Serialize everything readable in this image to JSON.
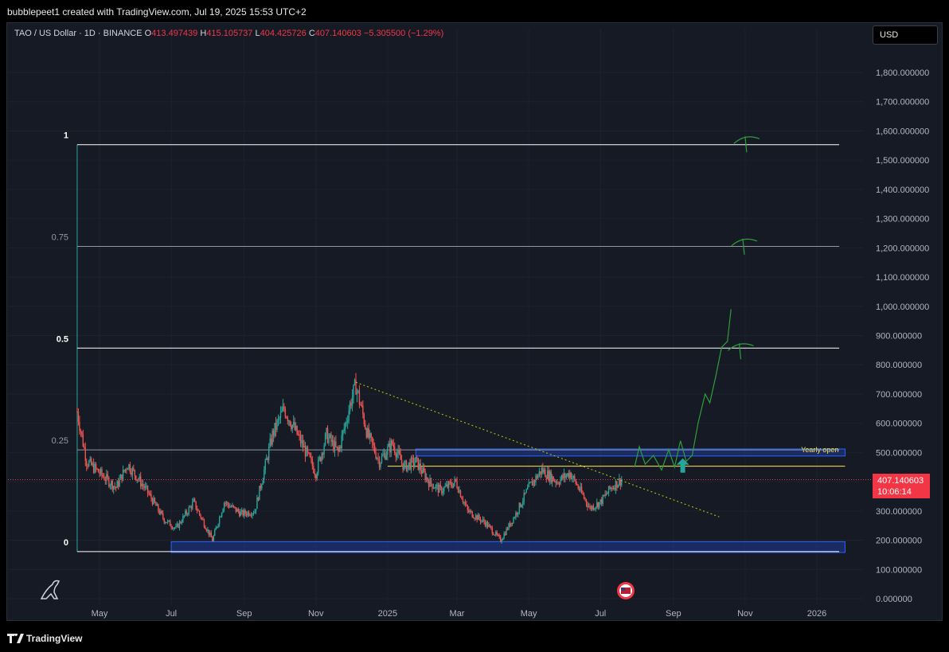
{
  "header": {
    "attribution": "bubblepeet1 created with TradingView.com, Jul 19, 2025 15:53 UTC+2"
  },
  "legend": {
    "symbol": "TAO / US Dollar · 1D · BINANCE",
    "o_key": "O",
    "o_val": "413.497439",
    "h_key": "H",
    "h_val": "415.105737",
    "l_key": "L",
    "l_val": "404.425726",
    "c_key": "C",
    "c_val": "407.140603",
    "change": "−5.305500 (−1.29%)"
  },
  "currency_button": "USD",
  "price_badge": {
    "price": "407.140603",
    "countdown": "10:06:14"
  },
  "footer": {
    "brand": "TradingView"
  },
  "colors": {
    "background": "#161a25",
    "up": "#26a69a",
    "down": "#ef5350",
    "fib_line": "#ffffff",
    "zone_fill": "#1f3a93",
    "zone_border": "#2962ff",
    "yearly_open": "#ffeb3b",
    "projection": "#2e9e3a",
    "price_badge": "#f23645"
  },
  "chart_data": {
    "type": "candlestick",
    "symbol": "TAO / US Dollar",
    "interval": "1D",
    "exchange": "BINANCE",
    "ylim": [
      0,
      1900
    ],
    "y_ticks": [
      0,
      100,
      200,
      300,
      400,
      500,
      600,
      700,
      800,
      900,
      1000,
      1100,
      1200,
      1300,
      1400,
      1500,
      1600,
      1700,
      1800
    ],
    "y_tick_labels": [
      "0.000000",
      "100.000000",
      "200.000000",
      "300.000000",
      "400.000000",
      "500.000000",
      "600.000000",
      "700.000000",
      "800.000000",
      "900.000000",
      "1,000.000000",
      "1,100.000000",
      "1,200.000000",
      "1,300.000000",
      "1,400.000000",
      "1,500.000000",
      "1,600.000000",
      "1,700.000000",
      "1,800.000000"
    ],
    "x_ticks": [
      {
        "label": "May",
        "date": "2024-05-01"
      },
      {
        "label": "Jul",
        "date": "2024-07-01"
      },
      {
        "label": "Sep",
        "date": "2024-09-01"
      },
      {
        "label": "Nov",
        "date": "2024-11-01"
      },
      {
        "label": "2025",
        "date": "2025-01-01"
      },
      {
        "label": "Mar",
        "date": "2025-03-01"
      },
      {
        "label": "May",
        "date": "2025-05-01"
      },
      {
        "label": "Jul",
        "date": "2025-07-01"
      },
      {
        "label": "Sep",
        "date": "2025-09-01"
      },
      {
        "label": "Nov",
        "date": "2025-11-01"
      },
      {
        "label": "2026",
        "date": "2026-01-01"
      }
    ],
    "price_path": [
      [
        "2024-04-12",
        640
      ],
      [
        "2024-04-20",
        470
      ],
      [
        "2024-05-01",
        430
      ],
      [
        "2024-05-15",
        380
      ],
      [
        "2024-05-25",
        460
      ],
      [
        "2024-06-10",
        370
      ],
      [
        "2024-06-25",
        270
      ],
      [
        "2024-07-05",
        240
      ],
      [
        "2024-07-20",
        330
      ],
      [
        "2024-08-05",
        200
      ],
      [
        "2024-08-15",
        330
      ],
      [
        "2024-08-30",
        290
      ],
      [
        "2024-09-10",
        300
      ],
      [
        "2024-09-25",
        560
      ],
      [
        "2024-10-05",
        650
      ],
      [
        "2024-10-20",
        530
      ],
      [
        "2024-11-01",
        430
      ],
      [
        "2024-11-10",
        560
      ],
      [
        "2024-11-20",
        500
      ],
      [
        "2024-12-01",
        680
      ],
      [
        "2024-12-05",
        730
      ],
      [
        "2024-12-15",
        560
      ],
      [
        "2024-12-25",
        470
      ],
      [
        "2025-01-05",
        530
      ],
      [
        "2025-01-15",
        450
      ],
      [
        "2025-01-25",
        470
      ],
      [
        "2025-02-05",
        400
      ],
      [
        "2025-02-15",
        370
      ],
      [
        "2025-02-28",
        400
      ],
      [
        "2025-03-10",
        300
      ],
      [
        "2025-03-25",
        260
      ],
      [
        "2025-04-07",
        200
      ],
      [
        "2025-04-20",
        290
      ],
      [
        "2025-05-01",
        380
      ],
      [
        "2025-05-12",
        440
      ],
      [
        "2025-05-25",
        400
      ],
      [
        "2025-06-05",
        430
      ],
      [
        "2025-06-15",
        360
      ],
      [
        "2025-06-22",
        310
      ],
      [
        "2025-07-01",
        330
      ],
      [
        "2025-07-10",
        380
      ],
      [
        "2025-07-19",
        407.14
      ]
    ],
    "last_price": 407.140603,
    "fibonacci": [
      {
        "level": "1",
        "price": 1553
      },
      {
        "level": "0.75",
        "price": 1205
      },
      {
        "level": "0.5",
        "price": 857
      },
      {
        "level": "0.25",
        "price": 509
      },
      {
        "level": "0",
        "price": 161
      }
    ],
    "zones": [
      {
        "name": "upper-zone",
        "from": "2025-01-25",
        "to": "2026-01-25",
        "low": 488,
        "high": 512
      },
      {
        "name": "bottom-zone",
        "from": "2024-07-01",
        "to": "2026-01-25",
        "low": 158,
        "high": 195
      }
    ],
    "yearly_open": {
      "label": "Yearly open",
      "price": 453,
      "from": "2025-01-01",
      "to": "2026-01-25"
    },
    "trendline": {
      "from": [
        "2024-12-05",
        740
      ],
      "to": [
        "2025-10-10",
        280
      ]
    },
    "projection_path": [
      [
        "2025-07-30",
        450
      ],
      [
        "2025-08-03",
        520
      ],
      [
        "2025-08-08",
        460
      ],
      [
        "2025-08-15",
        490
      ],
      [
        "2025-08-22",
        440
      ],
      [
        "2025-08-28",
        510
      ],
      [
        "2025-09-02",
        450
      ],
      [
        "2025-09-07",
        540
      ],
      [
        "2025-09-12",
        470
      ],
      [
        "2025-09-17",
        490
      ],
      [
        "2025-09-22",
        600
      ],
      [
        "2025-09-28",
        700
      ],
      [
        "2025-10-02",
        670
      ],
      [
        "2025-10-07",
        760
      ],
      [
        "2025-10-12",
        860
      ],
      [
        "2025-10-17",
        880
      ],
      [
        "2025-10-20",
        990
      ]
    ],
    "target_marks": [
      {
        "date": "2025-10-27",
        "price": 857
      },
      {
        "date": "2025-10-30",
        "price": 1215
      },
      {
        "date": "2025-11-01",
        "price": 1565
      }
    ],
    "arrow_marker": {
      "date": "2025-09-09",
      "price": 480
    },
    "grid": true,
    "legend_position": "top-left"
  }
}
